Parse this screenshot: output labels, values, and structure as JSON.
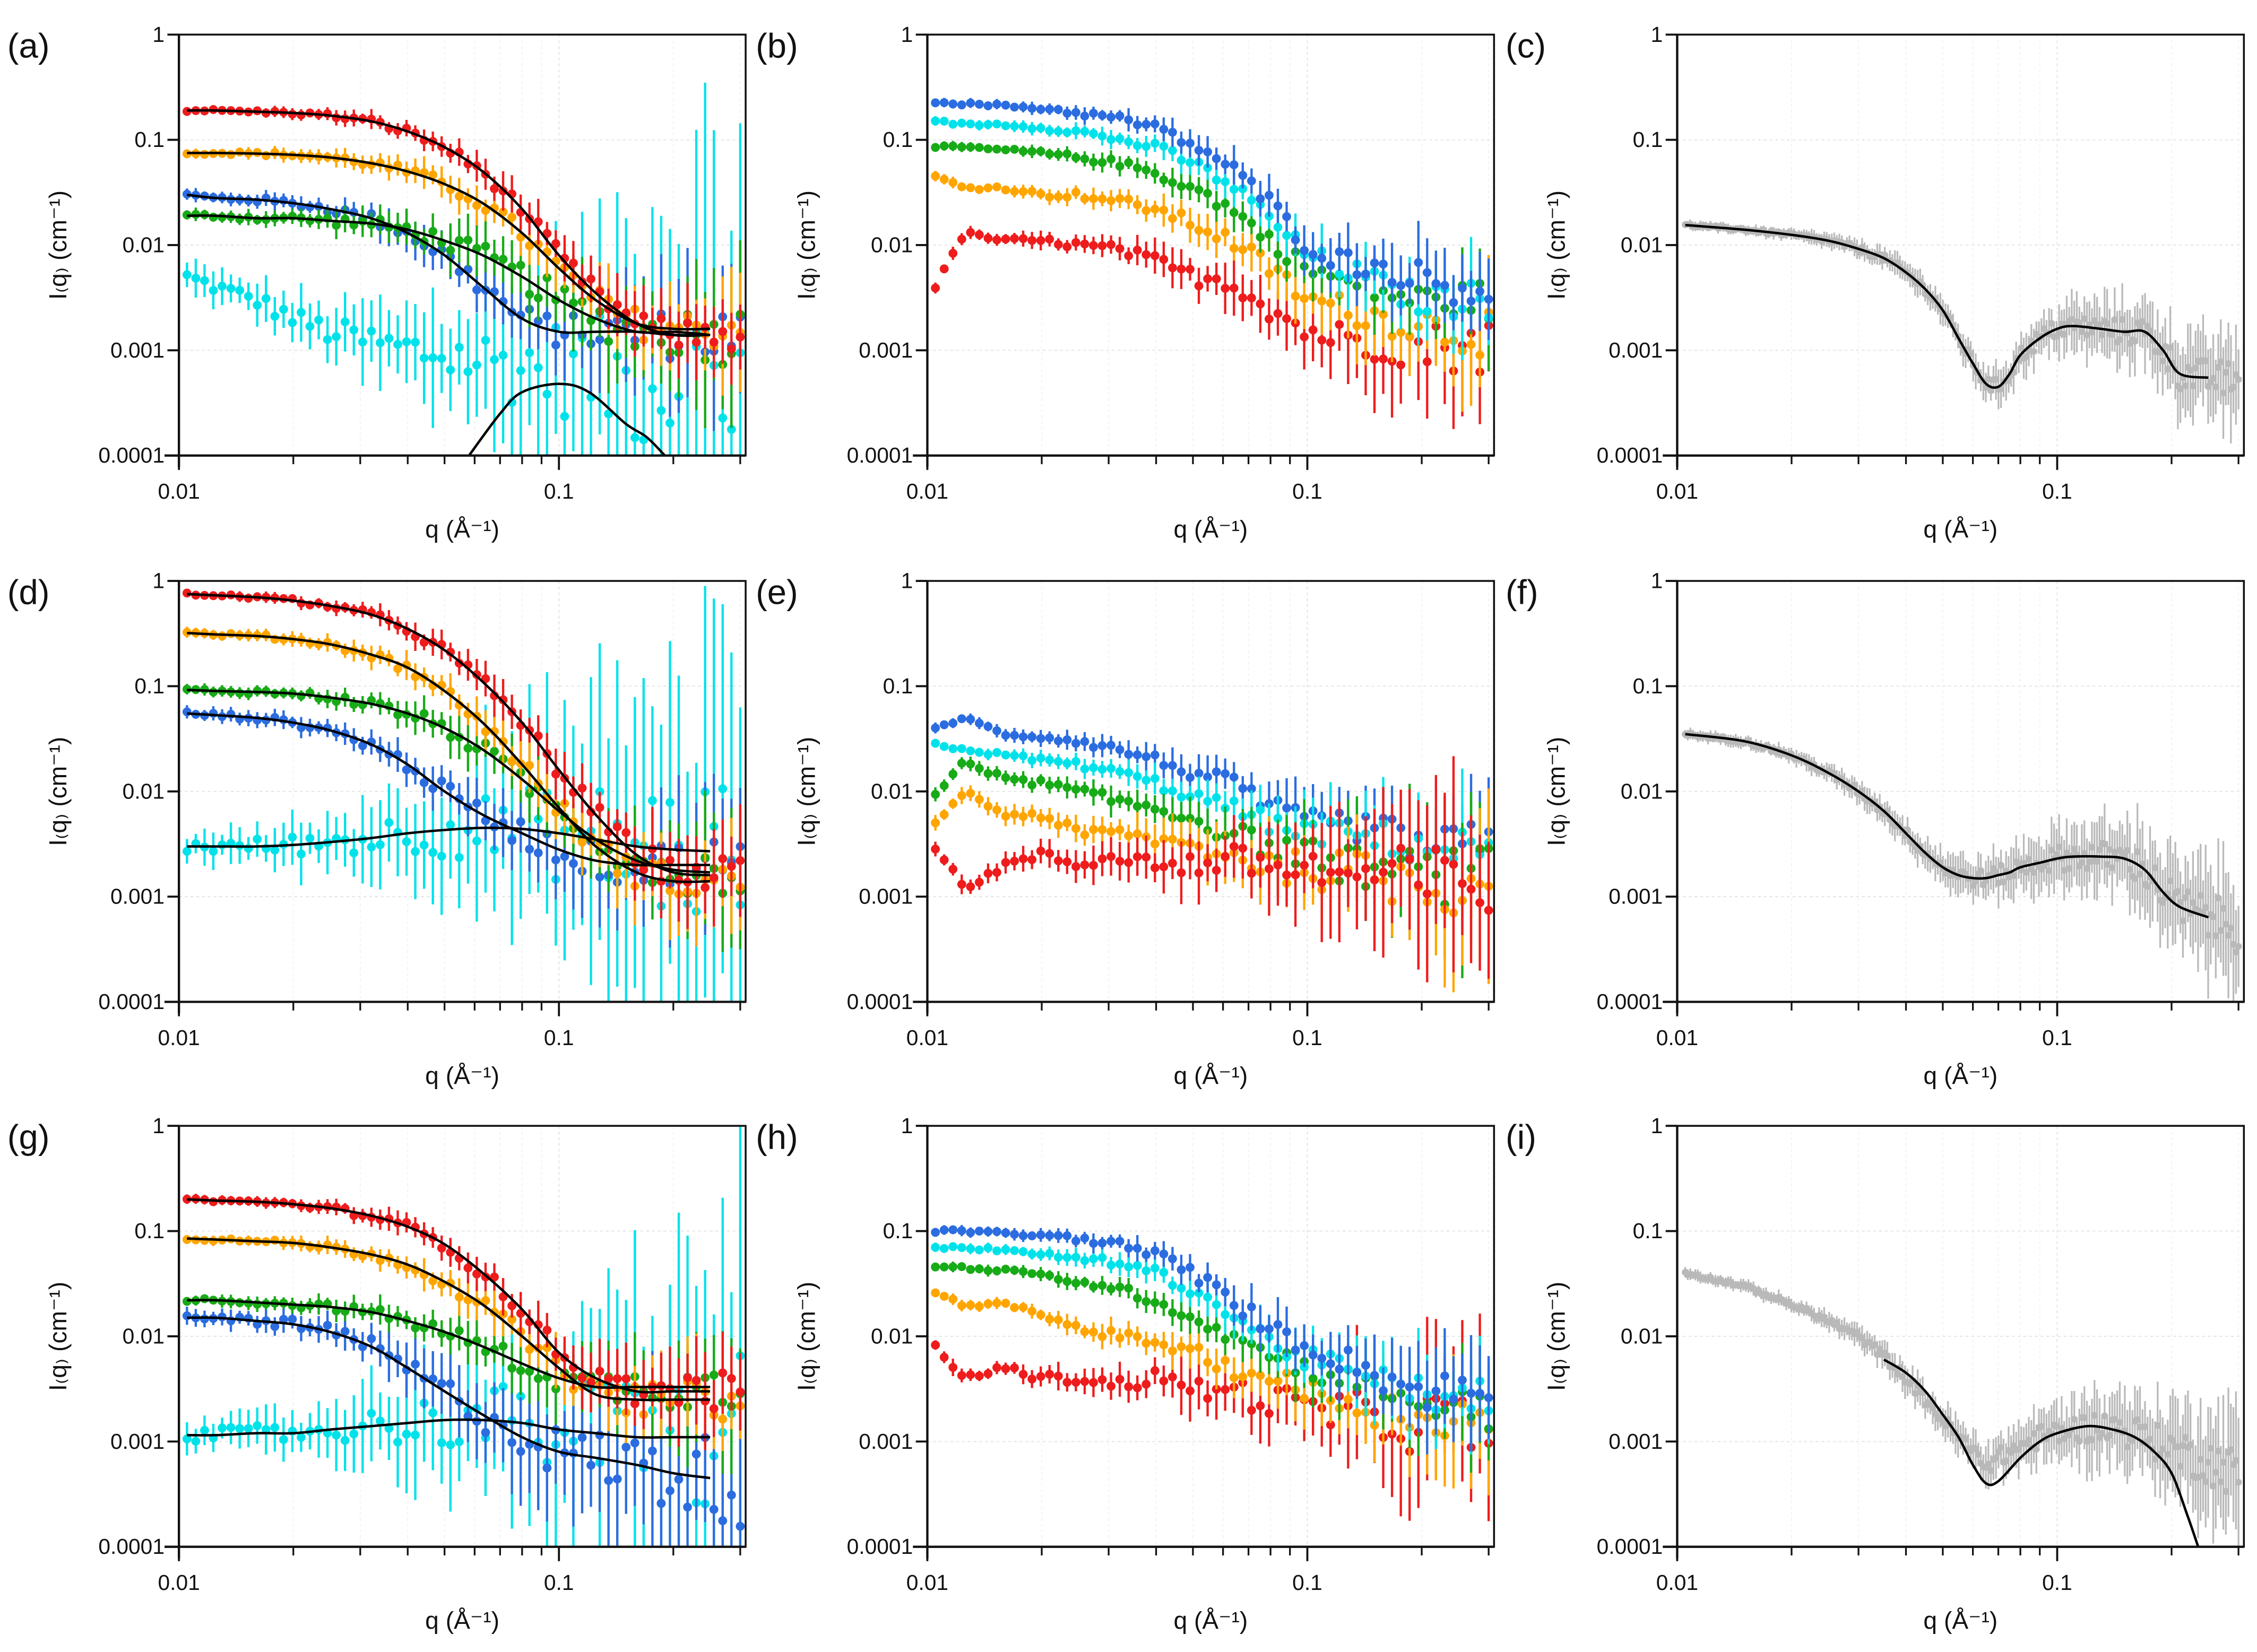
{
  "colors": {
    "red": "#ee1c1c",
    "orange": "#ffa500",
    "green": "#17ab17",
    "blue": "#2b6de0",
    "cyan": "#00e2ea",
    "gray": "#b9b9b9",
    "fit": "#000000"
  },
  "grids": {
    "std": [
      0.0105,
      0.0125,
      0.016,
      0.02,
      0.025,
      0.032,
      0.04,
      0.05,
      0.063,
      0.08,
      0.1,
      0.125,
      0.16,
      0.2,
      0.25,
      0.3
    ],
    "fine": [
      0.0105,
      0.015,
      0.02,
      0.025,
      0.03,
      0.035,
      0.04,
      0.045,
      0.05,
      0.055,
      0.06,
      0.065,
      0.07,
      0.075,
      0.08,
      0.09,
      0.1,
      0.11,
      0.13,
      0.15,
      0.17,
      0.19,
      0.21,
      0.3
    ]
  },
  "axes": {
    "xlabel": "q (Å⁻¹)",
    "ylabel": "I₍q₎ (cm⁻¹)",
    "xlim": [
      0.01,
      0.31
    ],
    "ylim": [
      0.0001,
      1
    ],
    "xticks": [
      {
        "v": 0.01,
        "label": "0.01"
      },
      {
        "v": 0.1,
        "label": "0.1"
      }
    ],
    "yticks": [
      {
        "v": 1,
        "label": "1"
      },
      {
        "v": 0.1,
        "label": "0.1"
      },
      {
        "v": 0.01,
        "label": "0.01"
      },
      {
        "v": 0.001,
        "label": "0.001"
      },
      {
        "v": 0.0001,
        "label": "0.0001"
      }
    ],
    "scale": "log-log",
    "grid": true
  },
  "chart_data": [
    {
      "panel": "(a)",
      "type": "scatter",
      "grid": "std",
      "series": [
        {
          "name": "cyan",
          "err": 4,
          "fit": false,
          "I": [
            0.005,
            0.004,
            0.003,
            0.002,
            0.0015,
            0.0012,
            0.001,
            0.0009,
            0.0008,
            0.0007,
            0.0007,
            0.0006,
            0.0005,
            0.0005,
            0.0005,
            0.0005
          ]
        },
        {
          "name": "blue",
          "err": 1.3,
          "fit": true,
          "fit_qmax": 0.25,
          "I": [
            0.03,
            0.028,
            0.027,
            0.025,
            0.022,
            0.018,
            0.013,
            0.008,
            0.004,
            0.002,
            0.0015,
            0.0015,
            0.0015,
            0.0014,
            0.0014,
            0.0014
          ]
        },
        {
          "name": "green",
          "err": 1.3,
          "fit": true,
          "fit_qmax": 0.25,
          "I": [
            0.019,
            0.019,
            0.018,
            0.018,
            0.017,
            0.016,
            0.014,
            0.011,
            0.008,
            0.005,
            0.003,
            0.002,
            0.0015,
            0.0015,
            0.0014,
            0.0014
          ]
        },
        {
          "name": "orange",
          "err": 0.9,
          "fit": true,
          "fit_qmax": 0.25,
          "I": [
            0.075,
            0.075,
            0.074,
            0.072,
            0.068,
            0.06,
            0.05,
            0.038,
            0.025,
            0.013,
            0.006,
            0.003,
            0.0018,
            0.0016,
            0.0016,
            0.0016
          ]
        },
        {
          "name": "red",
          "err": 0.7,
          "fit": true,
          "fit_qmax": 0.25,
          "I": [
            0.19,
            0.19,
            0.185,
            0.18,
            0.17,
            0.15,
            0.12,
            0.085,
            0.05,
            0.022,
            0.008,
            0.0035,
            0.0018,
            0.0014,
            0.0014,
            0.0014
          ]
        }
      ],
      "extra_fits": [
        {
          "q": [
            0.058,
            0.07,
            0.08,
            0.1,
            0.12,
            0.15,
            0.17,
            0.19
          ],
          "I": [
            0.0001,
            0.00025,
            0.0004,
            0.00048,
            0.0004,
            0.0002,
            0.00015,
            0.0001
          ]
        }
      ]
    },
    {
      "panel": "(b)",
      "type": "scatter",
      "grid": "std",
      "series": [
        {
          "name": "red",
          "err": 1.2,
          "fit": false,
          "I": [
            0.004,
            0.013,
            0.011,
            0.011,
            0.01,
            0.009,
            0.007,
            0.005,
            0.0045,
            0.0025,
            0.0015,
            0.0013,
            0.0012,
            0.0011,
            0.0011,
            0.0011
          ]
        },
        {
          "name": "orange",
          "err": 1,
          "fit": false,
          "I": [
            0.045,
            0.035,
            0.035,
            0.03,
            0.03,
            0.026,
            0.022,
            0.016,
            0.011,
            0.006,
            0.003,
            0.0025,
            0.002,
            0.0018,
            0.0015,
            0.0015
          ]
        },
        {
          "name": "green",
          "err": 0.8,
          "fit": false,
          "I": [
            0.085,
            0.085,
            0.08,
            0.075,
            0.068,
            0.06,
            0.048,
            0.035,
            0.022,
            0.011,
            0.006,
            0.0045,
            0.0035,
            0.003,
            0.003,
            0.003
          ]
        },
        {
          "name": "cyan",
          "err": 0.8,
          "fit": false,
          "I": [
            0.15,
            0.14,
            0.14,
            0.13,
            0.12,
            0.1,
            0.085,
            0.06,
            0.038,
            0.018,
            0.008,
            0.006,
            0.004,
            0.003,
            0.003,
            0.003
          ]
        },
        {
          "name": "blue",
          "err": 0.8,
          "fit": false,
          "I": [
            0.23,
            0.22,
            0.21,
            0.2,
            0.18,
            0.16,
            0.13,
            0.09,
            0.055,
            0.025,
            0.01,
            0.007,
            0.006,
            0.005,
            0.004,
            0.004
          ]
        }
      ],
      "extra_fits": []
    },
    {
      "panel": "(c)",
      "type": "scatter",
      "grid": "fine",
      "series": [
        {
          "name": "gray",
          "err": 0.8,
          "fit": true,
          "fit_qmax": 0.25,
          "dense": true,
          "I": [
            0.0155,
            0.014,
            0.0125,
            0.011,
            0.0092,
            0.0075,
            0.0055,
            0.0038,
            0.0024,
            0.0013,
            0.00075,
            0.00048,
            0.00045,
            0.0006,
            0.0009,
            0.0013,
            0.0016,
            0.0017,
            0.0016,
            0.0015,
            0.0015,
            0.001,
            0.0006,
            0.0005
          ]
        }
      ],
      "extra_fits": []
    },
    {
      "panel": "(d)",
      "type": "scatter",
      "grid": "std",
      "series": [
        {
          "name": "cyan",
          "err": 4,
          "fit": true,
          "fit_qmax": 0.25,
          "I": [
            0.003,
            0.003,
            0.003,
            0.0031,
            0.0033,
            0.0036,
            0.004,
            0.0043,
            0.0045,
            0.0044,
            0.004,
            0.0035,
            0.003,
            0.0028,
            0.0027,
            0.0027
          ]
        },
        {
          "name": "blue",
          "err": 1.3,
          "fit": true,
          "fit_qmax": 0.25,
          "I": [
            0.055,
            0.053,
            0.05,
            0.045,
            0.038,
            0.028,
            0.018,
            0.01,
            0.006,
            0.004,
            0.0028,
            0.0022,
            0.002,
            0.002,
            0.002,
            0.002
          ]
        },
        {
          "name": "green",
          "err": 1.1,
          "fit": true,
          "fit_qmax": 0.25,
          "I": [
            0.092,
            0.09,
            0.088,
            0.085,
            0.078,
            0.068,
            0.055,
            0.04,
            0.025,
            0.013,
            0.0065,
            0.0035,
            0.0022,
            0.0018,
            0.0017,
            0.0017
          ]
        },
        {
          "name": "orange",
          "err": 0.9,
          "fit": true,
          "fit_qmax": 0.25,
          "I": [
            0.32,
            0.31,
            0.3,
            0.28,
            0.25,
            0.2,
            0.15,
            0.09,
            0.045,
            0.018,
            0.007,
            0.003,
            0.0017,
            0.0014,
            0.0014,
            0.0014
          ]
        },
        {
          "name": "red",
          "err": 0.8,
          "fit": true,
          "fit_qmax": 0.25,
          "I": [
            0.75,
            0.73,
            0.7,
            0.65,
            0.58,
            0.48,
            0.35,
            0.22,
            0.11,
            0.045,
            0.016,
            0.006,
            0.0025,
            0.0017,
            0.0016,
            0.0016
          ]
        }
      ],
      "extra_fits": []
    },
    {
      "panel": "(e)",
      "type": "scatter",
      "grid": "std",
      "series": [
        {
          "name": "blue",
          "err": 1,
          "fit": false,
          "I": [
            0.04,
            0.05,
            0.035,
            0.033,
            0.03,
            0.025,
            0.02,
            0.015,
            0.012,
            0.007,
            0.005,
            0.005,
            0.004,
            0.003,
            0.003,
            0.003
          ]
        },
        {
          "name": "cyan",
          "err": 1,
          "fit": false,
          "I": [
            0.028,
            0.025,
            0.022,
            0.02,
            0.018,
            0.015,
            0.012,
            0.009,
            0.007,
            0.005,
            0.004,
            0.004,
            0.0035,
            0.003,
            0.0028,
            0.0028
          ]
        },
        {
          "name": "green",
          "err": 1.3,
          "fit": false,
          "I": [
            0.009,
            0.02,
            0.013,
            0.012,
            0.01,
            0.008,
            0.007,
            0.0055,
            0.004,
            0.003,
            0.0025,
            0.002,
            0.0018,
            0.0016,
            0.0015,
            0.0015
          ]
        },
        {
          "name": "orange",
          "err": 1.5,
          "fit": false,
          "I": [
            0.005,
            0.01,
            0.006,
            0.006,
            0.004,
            0.004,
            0.0035,
            0.003,
            0.0025,
            0.002,
            0.0018,
            0.0017,
            0.0015,
            0.0014,
            0.0013,
            0.0013
          ]
        },
        {
          "name": "red",
          "err": 1.8,
          "fit": false,
          "I": [
            0.003,
            0.0012,
            0.002,
            0.0025,
            0.002,
            0.0025,
            0.002,
            0.002,
            0.0022,
            0.002,
            0.0018,
            0.0016,
            0.0015,
            0.0014,
            0.0013,
            0.0013
          ]
        }
      ],
      "extra_fits": []
    },
    {
      "panel": "(f)",
      "type": "scatter",
      "grid": "fine",
      "series": [
        {
          "name": "gray",
          "err": 1,
          "fit": true,
          "fit_qmax": 0.25,
          "dense": true,
          "I": [
            0.035,
            0.03,
            0.022,
            0.015,
            0.01,
            0.0065,
            0.004,
            0.0026,
            0.0019,
            0.0016,
            0.0015,
            0.0015,
            0.0016,
            0.0017,
            0.0019,
            0.0021,
            0.0023,
            0.0024,
            0.0024,
            0.0023,
            0.0018,
            0.0011,
            0.0008,
            0.0005
          ]
        }
      ],
      "extra_fits": []
    },
    {
      "panel": "(g)",
      "type": "scatter",
      "grid": "std",
      "series": [
        {
          "name": "cyan",
          "err": 4,
          "fit": true,
          "fit_qmax": 0.25,
          "I": [
            0.00115,
            0.00115,
            0.0012,
            0.0012,
            0.0013,
            0.0014,
            0.0015,
            0.0016,
            0.0016,
            0.0015,
            0.0013,
            0.0012,
            0.0011,
            0.0011,
            0.0011,
            0.0011
          ]
        },
        {
          "name": "blue",
          "err": 2,
          "fit": true,
          "fit_qmax": 0.25,
          "I": [
            0.015,
            0.015,
            0.014,
            0.013,
            0.011,
            0.008,
            0.005,
            0.003,
            0.0018,
            0.0011,
            0.0008,
            0.0007,
            0.0006,
            0.0005,
            0.00045,
            0.00045
          ]
        },
        {
          "name": "green",
          "err": 1.1,
          "fit": true,
          "fit_qmax": 0.25,
          "I": [
            0.022,
            0.022,
            0.021,
            0.02,
            0.019,
            0.017,
            0.014,
            0.011,
            0.008,
            0.0055,
            0.004,
            0.0033,
            0.0033,
            0.0033,
            0.0033,
            0.0033
          ]
        },
        {
          "name": "orange",
          "err": 0.9,
          "fit": true,
          "fit_qmax": 0.25,
          "I": [
            0.085,
            0.083,
            0.08,
            0.077,
            0.07,
            0.06,
            0.048,
            0.033,
            0.02,
            0.01,
            0.005,
            0.0028,
            0.0025,
            0.0025,
            0.0025,
            0.0025
          ]
        },
        {
          "name": "red",
          "err": 0.8,
          "fit": true,
          "fit_qmax": 0.25,
          "I": [
            0.2,
            0.195,
            0.19,
            0.18,
            0.165,
            0.14,
            0.11,
            0.075,
            0.04,
            0.018,
            0.007,
            0.004,
            0.003,
            0.003,
            0.003,
            0.003
          ]
        }
      ],
      "extra_fits": []
    },
    {
      "panel": "(h)",
      "type": "scatter",
      "grid": "std",
      "series": [
        {
          "name": "red",
          "err": 1.6,
          "fit": false,
          "I": [
            0.008,
            0.004,
            0.005,
            0.004,
            0.004,
            0.0035,
            0.004,
            0.0032,
            0.003,
            0.0025,
            0.002,
            0.0018,
            0.0016,
            0.0015,
            0.0015,
            0.0015
          ]
        },
        {
          "name": "orange",
          "err": 1.1,
          "fit": false,
          "I": [
            0.025,
            0.02,
            0.02,
            0.016,
            0.012,
            0.01,
            0.009,
            0.007,
            0.005,
            0.004,
            0.003,
            0.0025,
            0.002,
            0.0018,
            0.0017,
            0.0017
          ]
        },
        {
          "name": "green",
          "err": 0.9,
          "fit": false,
          "I": [
            0.045,
            0.045,
            0.042,
            0.038,
            0.033,
            0.028,
            0.022,
            0.015,
            0.01,
            0.007,
            0.005,
            0.004,
            0.003,
            0.0025,
            0.002,
            0.002
          ]
        },
        {
          "name": "cyan",
          "err": 0.9,
          "fit": false,
          "I": [
            0.07,
            0.07,
            0.065,
            0.06,
            0.055,
            0.05,
            0.04,
            0.028,
            0.016,
            0.009,
            0.006,
            0.005,
            0.0035,
            0.003,
            0.0025,
            0.0025
          ]
        },
        {
          "name": "blue",
          "err": 0.9,
          "fit": false,
          "I": [
            0.1,
            0.1,
            0.095,
            0.09,
            0.085,
            0.075,
            0.06,
            0.04,
            0.022,
            0.012,
            0.008,
            0.006,
            0.004,
            0.003,
            0.003,
            0.003
          ]
        }
      ],
      "extra_fits": []
    },
    {
      "panel": "(i)",
      "type": "scatter",
      "grid": "fine",
      "series": [
        {
          "name": "gray",
          "err": 1,
          "fit": false,
          "dense": true,
          "I": [
            0.04,
            0.03,
            0.02,
            0.014,
            0.01,
            0.0065,
            0.004,
            0.0025,
            0.0016,
            0.0011,
            0.0008,
            0.0006,
            0.0007,
            0.0008,
            0.0009,
            0.0011,
            0.0012,
            0.0013,
            0.0014,
            0.0013,
            0.0011,
            0.0009,
            0.0008,
            0.0005
          ]
        }
      ],
      "extra_fits": [
        {
          "q": [
            0.035,
            0.04,
            0.045,
            0.05,
            0.055,
            0.06,
            0.065,
            0.07,
            0.08,
            0.09,
            0.1,
            0.12,
            0.14,
            0.16,
            0.18,
            0.2,
            0.22,
            0.235
          ],
          "I": [
            0.006,
            0.0045,
            0.003,
            0.0018,
            0.0011,
            0.0006,
            0.0004,
            0.00042,
            0.0007,
            0.001,
            0.0012,
            0.0014,
            0.0013,
            0.0011,
            0.0008,
            0.0005,
            0.0002,
            0.0001
          ]
        }
      ]
    }
  ]
}
